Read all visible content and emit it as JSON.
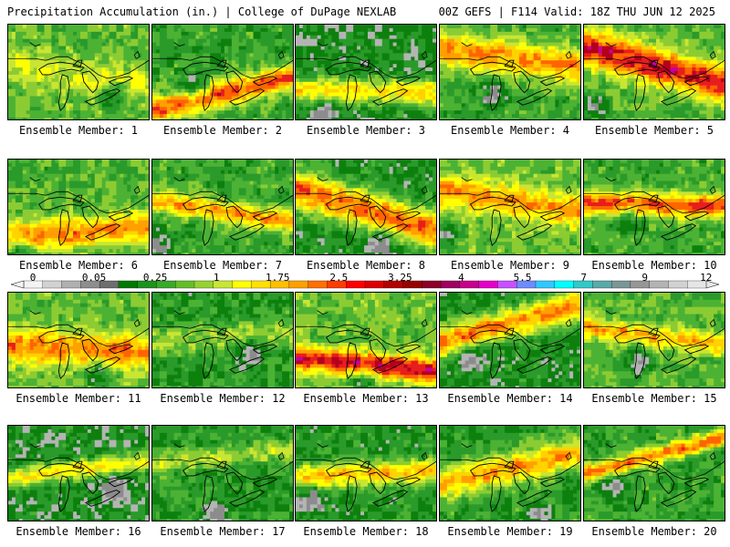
{
  "header": {
    "left": "Precipitation Accumulation (in.) | College of DuPage NEXLAB",
    "right": "00Z GEFS | F114 Valid: 18Z THU JUN 12 2025"
  },
  "colorbar": {
    "ticks": [
      "0",
      "0.05",
      "0.25",
      "1",
      "1.75",
      "2.5",
      "3.25",
      "4",
      "5.5",
      "7",
      "9",
      "12"
    ],
    "colors": [
      "#f4f4f4",
      "#d2d2d2",
      "#b0b0b0",
      "#8e8e8e",
      "#6e6e6e",
      "#007a00",
      "#1e921e",
      "#3aaa2a",
      "#64be2a",
      "#96d232",
      "#c8e632",
      "#ffff00",
      "#ffe000",
      "#ffc000",
      "#ffa000",
      "#ff7000",
      "#ff3c00",
      "#ff0000",
      "#dc0000",
      "#b40000",
      "#960000",
      "#8c0028",
      "#a00060",
      "#c8008c",
      "#e600c8",
      "#c850ff",
      "#6e8cff",
      "#32c8ff",
      "#00ffff",
      "#32c8c8",
      "#5aaaaa",
      "#7a9696",
      "#969696",
      "#b4b4b4",
      "#d2d2d2",
      "#e6e6e6"
    ]
  },
  "panels": [
    {
      "label": "Ensemble Member: 1"
    },
    {
      "label": "Ensemble Member: 2"
    },
    {
      "label": "Ensemble Member: 3"
    },
    {
      "label": "Ensemble Member: 4"
    },
    {
      "label": "Ensemble Member: 5"
    },
    {
      "label": "Ensemble Member: 6"
    },
    {
      "label": "Ensemble Member: 7"
    },
    {
      "label": "Ensemble Member: 8"
    },
    {
      "label": "Ensemble Member: 9"
    },
    {
      "label": "Ensemble Member: 10"
    },
    {
      "label": "Ensemble Member: 11"
    },
    {
      "label": "Ensemble Member: 12"
    },
    {
      "label": "Ensemble Member: 13"
    },
    {
      "label": "Ensemble Member: 14"
    },
    {
      "label": "Ensemble Member: 15"
    },
    {
      "label": "Ensemble Member: 16"
    },
    {
      "label": "Ensemble Member: 17"
    },
    {
      "label": "Ensemble Member: 18"
    },
    {
      "label": "Ensemble Member: 19"
    },
    {
      "label": "Ensemble Member: 20"
    }
  ]
}
